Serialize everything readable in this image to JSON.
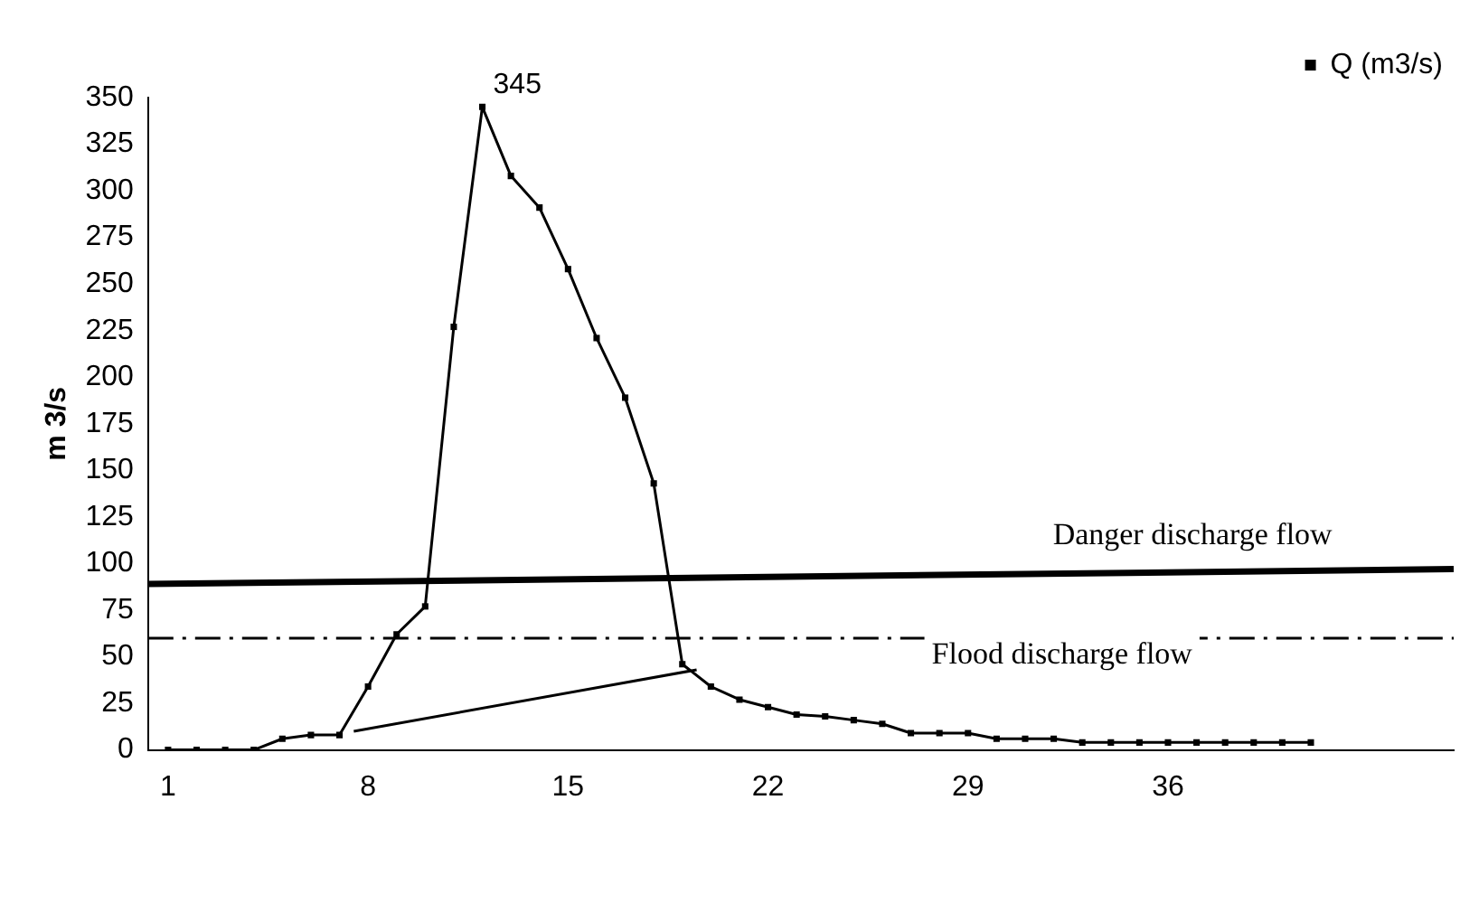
{
  "chart_data": {
    "type": "line",
    "ylabel": "m 3/s",
    "x": [
      1,
      2,
      3,
      4,
      5,
      6,
      7,
      8,
      9,
      10,
      11,
      12,
      13,
      14,
      15,
      16,
      17,
      18,
      19,
      20,
      21,
      22,
      23,
      24,
      25,
      26,
      27,
      28,
      29,
      30,
      31,
      32,
      33,
      34,
      35,
      36,
      37,
      38,
      39,
      40,
      41
    ],
    "series": [
      {
        "name": "Q (m3/s)",
        "color": "#000000",
        "marker": "square",
        "values": [
          0,
          0,
          0,
          0,
          6,
          8,
          8,
          34,
          62,
          77,
          227,
          345,
          308,
          291,
          258,
          221,
          189,
          143,
          46,
          34,
          27,
          23,
          19,
          18,
          16,
          14,
          9,
          9,
          9,
          6,
          6,
          6,
          4,
          4,
          4,
          4,
          4,
          4,
          4,
          4,
          4
        ]
      },
      {
        "type": "line",
        "color": "#000000",
        "marker": "none",
        "x": [
          7.5,
          19.5
        ],
        "values": [
          10,
          43
        ]
      },
      {
        "type": "line",
        "color": "#000000",
        "marker": "none",
        "x": [
          0.3,
          46
        ],
        "values": [
          89,
          97
        ]
      }
    ],
    "xlim": [
      0.3,
      46
    ],
    "xticks": [
      1,
      8,
      15,
      22,
      29,
      36
    ],
    "ylim": [
      0,
      350
    ],
    "yticks": [
      0,
      25,
      50,
      75,
      100,
      125,
      150,
      175,
      200,
      225,
      250,
      275,
      300,
      325,
      350
    ],
    "ref_lines": [
      {
        "axis": "y",
        "value": 60,
        "label": "Flood discharge flow",
        "line_style": "dashdot"
      }
    ],
    "annotations": [
      {
        "text": "345",
        "x": 12,
        "y": 345
      },
      "Danger discharge flow"
    ],
    "grid": false,
    "legend": "top right"
  }
}
